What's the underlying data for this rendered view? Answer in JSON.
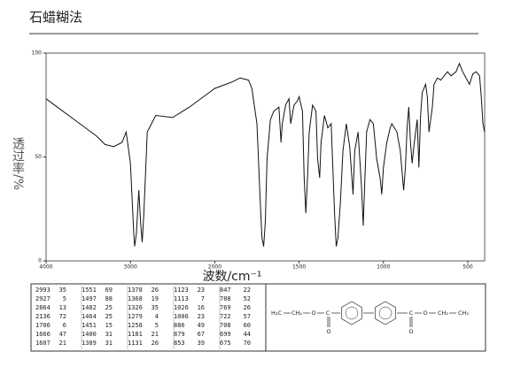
{
  "chart_data": {
    "type": "line",
    "title": "石蜡糊法",
    "xlabel": "波数/cm⁻¹",
    "ylabel": "透过率/%",
    "color": "#111111",
    "xlim": [
      4000,
      400
    ],
    "xticks": [
      4000,
      3000,
      2000,
      1500,
      1000,
      500
    ],
    "ylim": [
      0,
      100
    ],
    "yticks": [
      0,
      50,
      100
    ],
    "x": [
      4000,
      3800,
      3600,
      3400,
      3300,
      3200,
      3100,
      3050,
      3000,
      2960,
      2950,
      2930,
      2900,
      2880,
      2860,
      2840,
      2800,
      2700,
      2500,
      2300,
      2100,
      2000,
      1900,
      1850,
      1800,
      1780,
      1750,
      1730,
      1720,
      1710,
      1700,
      1690,
      1670,
      1650,
      1620,
      1607,
      1600,
      1580,
      1560,
      1550,
      1530,
      1510,
      1500,
      1480,
      1470,
      1460,
      1450,
      1440,
      1420,
      1400,
      1390,
      1378,
      1370,
      1350,
      1330,
      1310,
      1290,
      1280,
      1270,
      1255,
      1240,
      1220,
      1200,
      1180,
      1170,
      1150,
      1130,
      1120,
      1110,
      1100,
      1080,
      1060,
      1040,
      1020,
      1010,
      1000,
      980,
      960,
      950,
      920,
      900,
      880,
      870,
      860,
      850,
      840,
      830,
      820,
      800,
      790,
      780,
      770,
      750,
      740,
      730,
      720,
      710,
      700,
      680,
      660,
      640,
      620,
      600,
      570,
      550,
      530,
      510,
      490,
      470,
      450,
      430,
      420,
      410,
      400
    ],
    "values": [
      78,
      72,
      66,
      60,
      56,
      55,
      57,
      62,
      47,
      13,
      7,
      13,
      34,
      19,
      9,
      23,
      62,
      70,
      69,
      74,
      80,
      83,
      86,
      88,
      87,
      83,
      66,
      28,
      11,
      7,
      19,
      49,
      68,
      72,
      74,
      57,
      66,
      75,
      78,
      66,
      75,
      77,
      79,
      72,
      40,
      23,
      40,
      62,
      75,
      72,
      49,
      40,
      57,
      70,
      64,
      66,
      23,
      7,
      11,
      28,
      53,
      66,
      55,
      32,
      53,
      62,
      36,
      17,
      40,
      62,
      68,
      66,
      49,
      40,
      32,
      45,
      57,
      64,
      66,
      62,
      53,
      34,
      45,
      64,
      74,
      57,
      47,
      55,
      68,
      45,
      70,
      81,
      85,
      79,
      62,
      68,
      74,
      85,
      88,
      87,
      89,
      91,
      89,
      91,
      95,
      91,
      88,
      85,
      90,
      91,
      89,
      79,
      66,
      62
    ]
  },
  "peak_table": [
    [
      [
        2993,
        35
      ],
      [
        2927,
        5
      ],
      [
        2864,
        13
      ],
      [
        2136,
        72
      ],
      [
        1706,
        6
      ],
      [
        1666,
        47
      ],
      [
        1607,
        21
      ]
    ],
    [
      [
        1551,
        69
      ],
      [
        1497,
        88
      ],
      [
        1482,
        25
      ],
      [
        1464,
        25
      ],
      [
        1451,
        15
      ],
      [
        1400,
        31
      ],
      [
        1389,
        31
      ]
    ],
    [
      [
        1378,
        26
      ],
      [
        1368,
        19
      ],
      [
        1326,
        35
      ],
      [
        1279,
        4
      ],
      [
        1258,
        5
      ],
      [
        1181,
        21
      ],
      [
        1131,
        20
      ]
    ],
    [
      [
        1123,
        23
      ],
      [
        1113,
        7
      ],
      [
        1026,
        16
      ],
      [
        1006,
        23
      ],
      [
        886,
        49
      ],
      [
        879,
        67
      ],
      [
        853,
        39
      ]
    ],
    [
      [
        847,
        22
      ],
      [
        788,
        52
      ],
      [
        769,
        26
      ],
      [
        722,
        57
      ],
      [
        708,
        60
      ],
      [
        699,
        44
      ],
      [
        675,
        70
      ]
    ]
  ],
  "structure": {
    "labels": [
      "H₃C",
      "CH₂",
      "O",
      "C",
      "O",
      "C",
      "O",
      "O",
      "CH₂",
      "CH₃"
    ]
  }
}
